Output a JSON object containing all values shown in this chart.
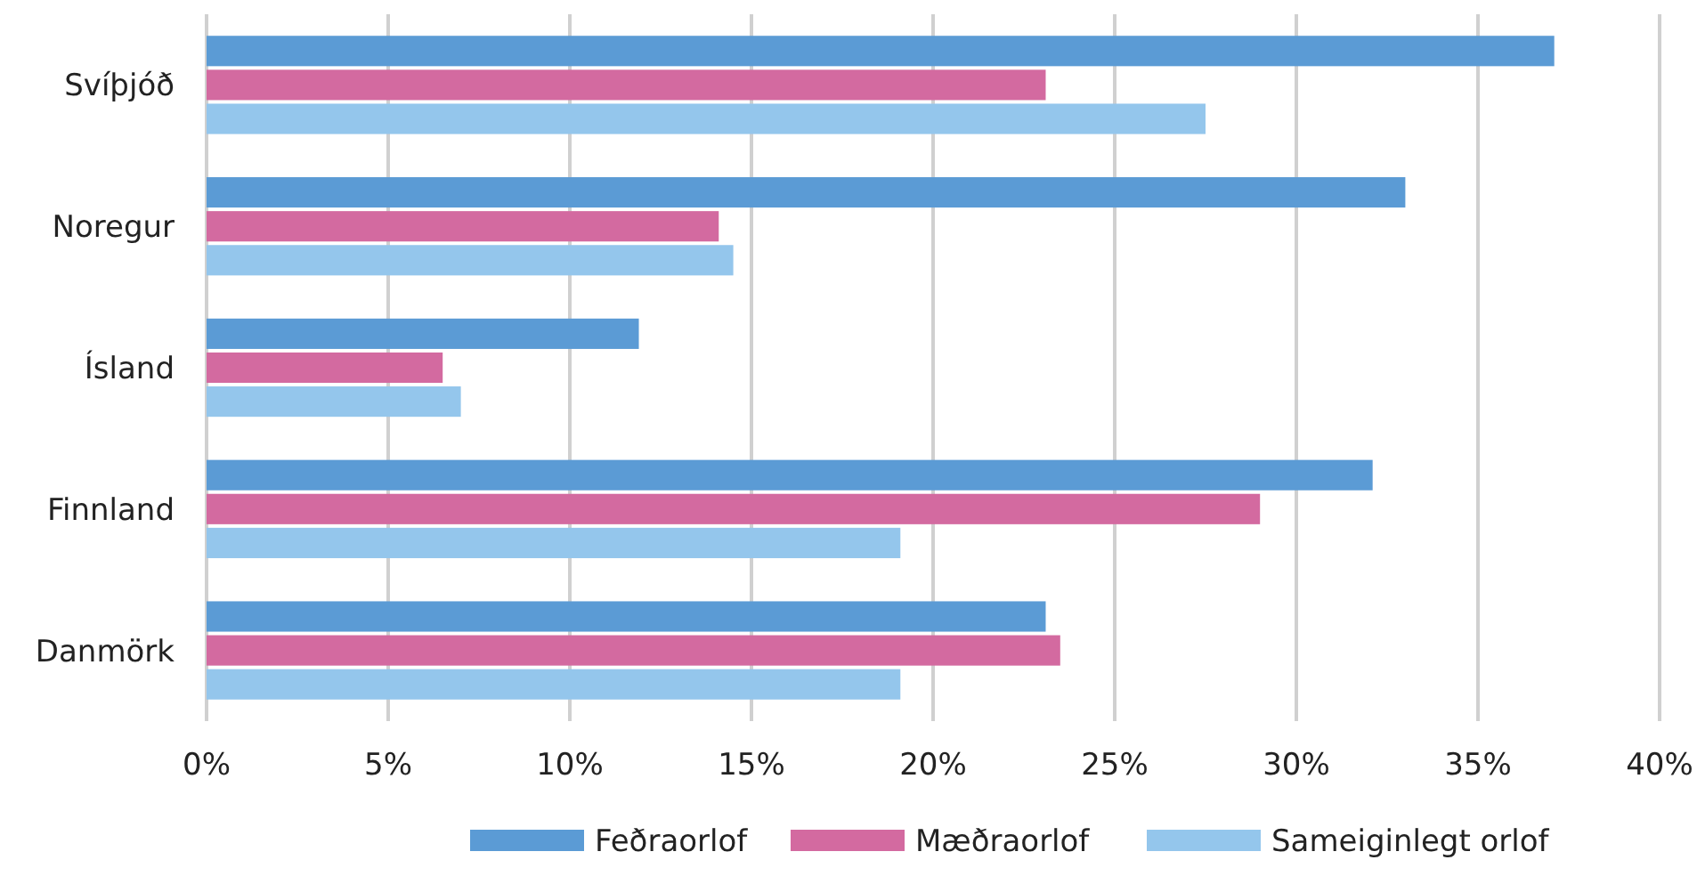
{
  "chart_data": {
    "type": "bar",
    "orientation": "horizontal",
    "categories": [
      "Svíþjóð",
      "Noregur",
      "Ísland",
      "Finnland",
      "Danmörk"
    ],
    "series": [
      {
        "name": "Feðraorlof",
        "color": "#5b9bd5",
        "values": [
          37.1,
          33.0,
          11.9,
          32.1,
          23.1
        ]
      },
      {
        "name": "Mæðraorlof",
        "color": "#d36aa0",
        "values": [
          23.1,
          14.1,
          6.5,
          29.0,
          23.5
        ]
      },
      {
        "name": "Sameiginlegt orlof",
        "color": "#94c6ec",
        "values": [
          27.5,
          14.5,
          7.0,
          19.1,
          19.1
        ]
      }
    ],
    "xlim": [
      0,
      40
    ],
    "xticks": [
      {
        "value": 0,
        "label": "0%"
      },
      {
        "value": 5,
        "label": "5%"
      },
      {
        "value": 10,
        "label": "10%"
      },
      {
        "value": 15,
        "label": "15%"
      },
      {
        "value": 20,
        "label": "20%"
      },
      {
        "value": 25,
        "label": "25%"
      },
      {
        "value": 30,
        "label": "30%"
      },
      {
        "value": 35,
        "label": "35%"
      },
      {
        "value": 40,
        "label": "40%"
      }
    ],
    "grid": "x",
    "legend": "bottom"
  }
}
